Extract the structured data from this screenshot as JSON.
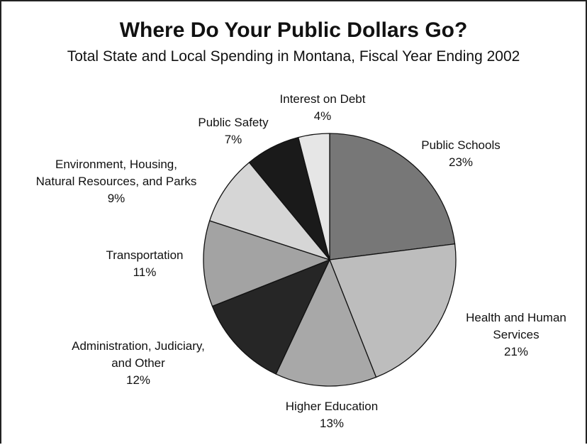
{
  "chart_data": {
    "type": "pie",
    "title": "Where Do Your Public Dollars Go?",
    "subtitle": "Total State and Local Spending in Montana, Fiscal Year Ending 2002",
    "slices": [
      {
        "label": [
          "Public Schools"
        ],
        "value": 23,
        "value_label": "23%",
        "color": "#777777"
      },
      {
        "label": [
          "Health and Human",
          "Services"
        ],
        "value": 21,
        "value_label": "21%",
        "color": "#bdbdbd"
      },
      {
        "label": [
          "Higher Education"
        ],
        "value": 13,
        "value_label": "13%",
        "color": "#a8a8a8"
      },
      {
        "label": [
          "Administration, Judiciary,",
          "and Other"
        ],
        "value": 12,
        "value_label": "12%",
        "color": "#262626"
      },
      {
        "label": [
          "Transportation"
        ],
        "value": 11,
        "value_label": "11%",
        "color": "#a3a3a3"
      },
      {
        "label": [
          "Environment, Housing,",
          "Natural Resources, and Parks"
        ],
        "value": 9,
        "value_label": "9%",
        "color": "#d6d6d6"
      },
      {
        "label": [
          "Public Safety"
        ],
        "value": 7,
        "value_label": "7%",
        "color": "#1a1a1a"
      },
      {
        "label": [
          "Interest on Debt"
        ],
        "value": 4,
        "value_label": "4%",
        "color": "#e6e6e6"
      }
    ]
  }
}
